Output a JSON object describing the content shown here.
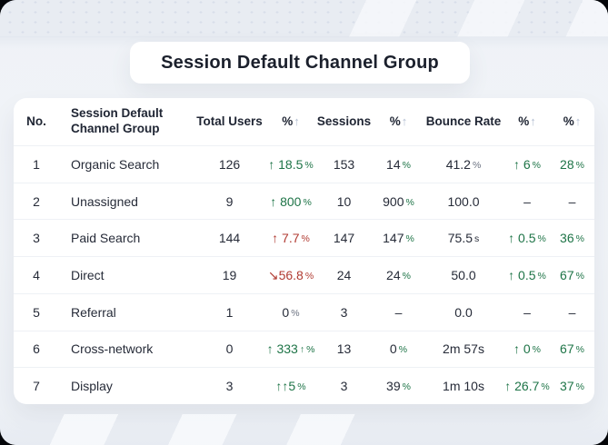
{
  "title": "Session Default Channel Group",
  "colors": {
    "dark": "#262b38",
    "green": "#1e7447",
    "red": "#b03a31",
    "muted": "#6a7180",
    "header_arrow": "#b5c0d3"
  },
  "table": {
    "columns": [
      {
        "key": "no",
        "label": "No.",
        "arrow": "",
        "align": "center"
      },
      {
        "key": "channel",
        "label": "Session Default Channel Group",
        "arrow": "",
        "align": "left"
      },
      {
        "key": "total-users",
        "label": "Total Users",
        "arrow": "",
        "align": "center"
      },
      {
        "key": "pct-1",
        "label": "%",
        "arrow": "↑",
        "align": "center"
      },
      {
        "key": "sessions",
        "label": "Sessions",
        "arrow": "",
        "align": "center"
      },
      {
        "key": "pct-2",
        "label": "%",
        "arrow": "↑",
        "align": "center"
      },
      {
        "key": "bounce-rate",
        "label": "Bounce Rate",
        "arrow": "",
        "align": "center"
      },
      {
        "key": "pct-3",
        "label": "%",
        "arrow": "↑",
        "align": "center"
      },
      {
        "key": "pct-4",
        "label": "%",
        "arrow": "↑",
        "align": "center"
      }
    ],
    "rows": [
      {
        "cells": [
          [
            {
              "t": "1",
              "c": "dark"
            }
          ],
          [
            {
              "t": "Organic Search",
              "c": "dark"
            }
          ],
          [
            {
              "t": "126",
              "c": "dark"
            }
          ],
          [
            {
              "t": "↑ 18.5",
              "c": "green"
            },
            {
              "t": "%",
              "c": "green",
              "s": true
            }
          ],
          [
            {
              "t": "153",
              "c": "dark"
            }
          ],
          [
            {
              "t": "14",
              "c": "dark"
            },
            {
              "t": "%",
              "c": "green",
              "s": true
            }
          ],
          [
            {
              "t": "41.2",
              "c": "dark"
            },
            {
              "t": "%",
              "c": "muted",
              "s": true
            }
          ],
          [
            {
              "t": "↑ 6",
              "c": "green"
            },
            {
              "t": "%",
              "c": "green",
              "s": true
            }
          ],
          [
            {
              "t": "28",
              "c": "green"
            },
            {
              "t": "%",
              "c": "green",
              "s": true
            }
          ]
        ]
      },
      {
        "cells": [
          [
            {
              "t": "2",
              "c": "dark"
            }
          ],
          [
            {
              "t": "Unassigned",
              "c": "dark"
            }
          ],
          [
            {
              "t": "9",
              "c": "dark"
            }
          ],
          [
            {
              "t": "↑ 800",
              "c": "green"
            },
            {
              "t": "%",
              "c": "green",
              "s": true
            }
          ],
          [
            {
              "t": "10",
              "c": "dark"
            }
          ],
          [
            {
              "t": "900",
              "c": "dark"
            },
            {
              "t": "%",
              "c": "green",
              "s": true
            }
          ],
          [
            {
              "t": "100.0",
              "c": "dark"
            }
          ],
          [
            {
              "t": "–",
              "c": "dark"
            }
          ],
          [
            {
              "t": "–",
              "c": "dark"
            }
          ]
        ]
      },
      {
        "cells": [
          [
            {
              "t": "3",
              "c": "dark"
            }
          ],
          [
            {
              "t": "Paid Search",
              "c": "dark"
            }
          ],
          [
            {
              "t": "144",
              "c": "dark"
            }
          ],
          [
            {
              "t": "↑ 7.7",
              "c": "red"
            },
            {
              "t": "%",
              "c": "red",
              "s": true
            }
          ],
          [
            {
              "t": "147",
              "c": "dark"
            }
          ],
          [
            {
              "t": "147",
              "c": "dark"
            },
            {
              "t": "%",
              "c": "green",
              "s": true
            }
          ],
          [
            {
              "t": "75.5",
              "c": "dark"
            },
            {
              "t": "s",
              "c": "dark",
              "s": true
            }
          ],
          [
            {
              "t": "↑ 0.5",
              "c": "green"
            },
            {
              "t": "%",
              "c": "green",
              "s": true
            }
          ],
          [
            {
              "t": "36",
              "c": "green"
            },
            {
              "t": "%",
              "c": "green",
              "s": true
            }
          ]
        ]
      },
      {
        "cells": [
          [
            {
              "t": "4",
              "c": "dark"
            }
          ],
          [
            {
              "t": "Direct",
              "c": "dark"
            }
          ],
          [
            {
              "t": "19",
              "c": "dark"
            }
          ],
          [
            {
              "t": "↘56.8",
              "c": "red"
            },
            {
              "t": "%",
              "c": "red",
              "s": true
            }
          ],
          [
            {
              "t": "24",
              "c": "dark"
            }
          ],
          [
            {
              "t": "24",
              "c": "dark"
            },
            {
              "t": "%",
              "c": "green",
              "s": true
            }
          ],
          [
            {
              "t": "50.0",
              "c": "dark"
            }
          ],
          [
            {
              "t": "↑ 0.5",
              "c": "green"
            },
            {
              "t": "%",
              "c": "green",
              "s": true
            }
          ],
          [
            {
              "t": "67",
              "c": "green"
            },
            {
              "t": "%",
              "c": "green",
              "s": true
            }
          ]
        ]
      },
      {
        "cells": [
          [
            {
              "t": "5",
              "c": "dark"
            }
          ],
          [
            {
              "t": "Referral",
              "c": "dark"
            }
          ],
          [
            {
              "t": "1",
              "c": "dark"
            }
          ],
          [
            {
              "t": "0",
              "c": "dark"
            },
            {
              "t": "%",
              "c": "muted",
              "s": true
            }
          ],
          [
            {
              "t": "3",
              "c": "dark"
            }
          ],
          [
            {
              "t": "–",
              "c": "dark"
            }
          ],
          [
            {
              "t": "0.0",
              "c": "dark"
            }
          ],
          [
            {
              "t": "–",
              "c": "dark"
            }
          ],
          [
            {
              "t": "–",
              "c": "dark"
            }
          ]
        ]
      },
      {
        "cells": [
          [
            {
              "t": "6",
              "c": "dark"
            }
          ],
          [
            {
              "t": "Cross-network",
              "c": "dark"
            }
          ],
          [
            {
              "t": "0",
              "c": "dark"
            }
          ],
          [
            {
              "t": "↑ 333",
              "c": "green"
            },
            {
              "t": "↑",
              "c": "green",
              "s": true
            },
            {
              "t": "%",
              "c": "green",
              "s": true
            }
          ],
          [
            {
              "t": "13",
              "c": "dark"
            }
          ],
          [
            {
              "t": "0",
              "c": "dark"
            },
            {
              "t": "%",
              "c": "green",
              "s": true
            }
          ],
          [
            {
              "t": "2m 57s",
              "c": "dark"
            }
          ],
          [
            {
              "t": "↑ 0",
              "c": "green"
            },
            {
              "t": "%",
              "c": "green",
              "s": true
            }
          ],
          [
            {
              "t": "67",
              "c": "green"
            },
            {
              "t": "%",
              "c": "green",
              "s": true
            }
          ]
        ]
      },
      {
        "cells": [
          [
            {
              "t": "7",
              "c": "dark"
            }
          ],
          [
            {
              "t": "Display",
              "c": "dark"
            }
          ],
          [
            {
              "t": "3",
              "c": "dark"
            }
          ],
          [
            {
              "t": "↑↑5",
              "c": "green"
            },
            {
              "t": "%",
              "c": "green",
              "s": true
            }
          ],
          [
            {
              "t": "3",
              "c": "dark"
            }
          ],
          [
            {
              "t": "39",
              "c": "dark"
            },
            {
              "t": "%",
              "c": "green",
              "s": true
            }
          ],
          [
            {
              "t": "1m 10s",
              "c": "dark"
            }
          ],
          [
            {
              "t": "↑ 26.7",
              "c": "green"
            },
            {
              "t": "%",
              "c": "green",
              "s": true
            }
          ],
          [
            {
              "t": "37",
              "c": "green"
            },
            {
              "t": "%",
              "c": "green",
              "s": true
            }
          ]
        ]
      }
    ]
  }
}
